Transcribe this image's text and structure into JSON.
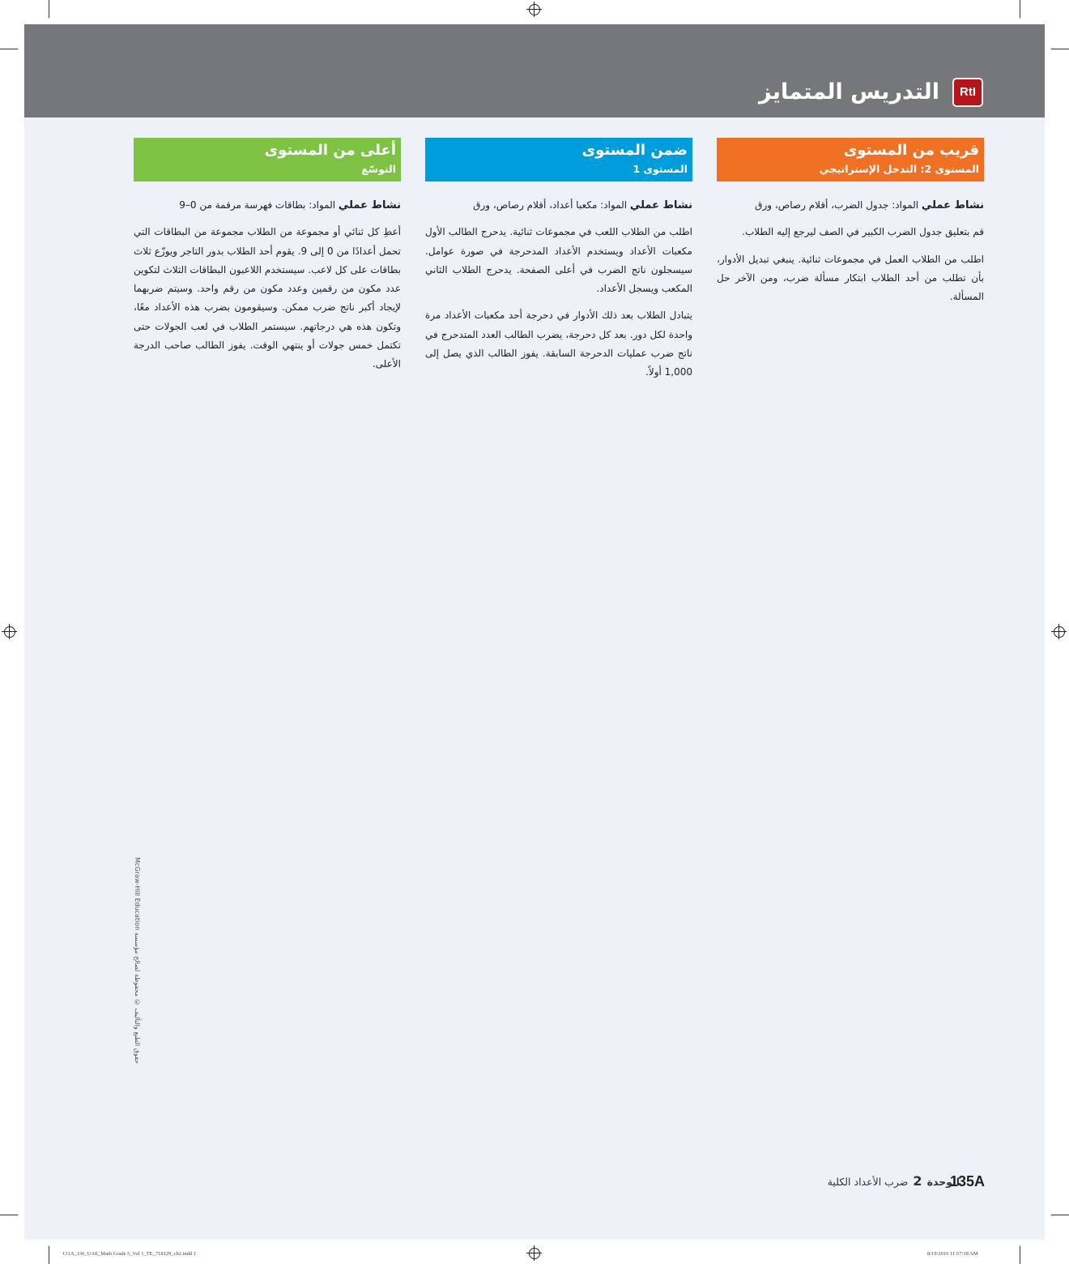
{
  "header": {
    "title": "التدريس المتمايز",
    "badge": "RtI",
    "badge_color": "#b5161b",
    "banner_color": "#76777b"
  },
  "columns": [
    {
      "color": "#f07124",
      "title": "قريب من المستوى",
      "subtitle": "المستوى 2: التدخل الإستراتيجي",
      "activity_label": "نشاط عملي",
      "materials": "المواد: جدول الضرب، أقلام رصاص، ورق",
      "paragraphs": [
        "قم بتعليق جدول الضرب الكبير في الصف ليرجع إليه الطلاب.",
        "اطلب من الطلاب العمل في مجموعات ثنائية. ينبغي تبديل الأدوار، بأن تطلب من أحد الطلاب ابتكار مسألة ضرب، ومن الآخر حل المسألة."
      ]
    },
    {
      "color": "#009ddc",
      "title": "ضمن المستوى",
      "subtitle": "المستوى 1",
      "activity_label": "نشاط عملي",
      "materials": "المواد: مكعبا أعداد، أقلام رصاص، ورق",
      "paragraphs": [
        "اطلب من الطلاب اللعب في مجموعات ثنائية. يدحرج الطالب الأول مكعبات الأعداد ويستخدم الأعداد المدحرجة في صورة عوامل. سيسجلون ناتج الضرب في أعلى الصفحة. يدحرج الطلاب الثاني المكعب ويسجل الأعداد.",
        "يتبادل الطلاب بعد ذلك الأدوار في دحرجة أحد مكعبات الأعداد مرة واحدة لكل دور. بعد كل دحرجة، يضرب الطالب العدد المتدحرج في ناتج ضرب عمليات الدحرجة السابقة. يفوز الطالب الذي يصل إلى 1,000 أولاً."
      ]
    },
    {
      "color": "#7dc242",
      "title": "أعلى من المستوى",
      "subtitle": "التوسّع",
      "activity_label": "نشاط عملي",
      "materials": "المواد: بطاقات فهرسة مرقمة من 0–9",
      "paragraphs": [
        "أعطِ كل ثنائي أو مجموعة من الطلاب مجموعة من البطاقات التي تحمل أعدادًا من 0 إلى 9. يقوم أحد الطلاب بدور التاجر ويوزّع ثلاث بطاقات على كل لاعب. سيستخدم اللاعبون البطاقات الثلاث لتكوين عدد مكون من رقمين وعدد مكون من رقم واحد. وسيتم ضربهما لإيجاد أكبر ناتج ضرب ممكن. وسيقومون بضرب هذه الأعداد معًا، وتكون هذه هي درجاتهم. سيستمر الطلاب في لعب الجولات حتى تكتمل خمس جولات أو ينتهي الوقت. يفوز الطالب صاحب الدرجة الأعلى."
      ]
    }
  ],
  "footer": {
    "page_number": "135A",
    "unit_label": "الوحدة",
    "unit_number": "2",
    "unit_title": "ضرب الأعداد الكلية"
  },
  "copyright": "حقوق الطبع والتأليف © محفوظة لصالح مؤسسة McGraw-Hill Education",
  "slug": {
    "file": "131A_136_UAE_Math Grade 5_Vol 1_TE_718129_ch2.indd   1",
    "timestamp": "8/19/2016   11:57:18 AM"
  }
}
